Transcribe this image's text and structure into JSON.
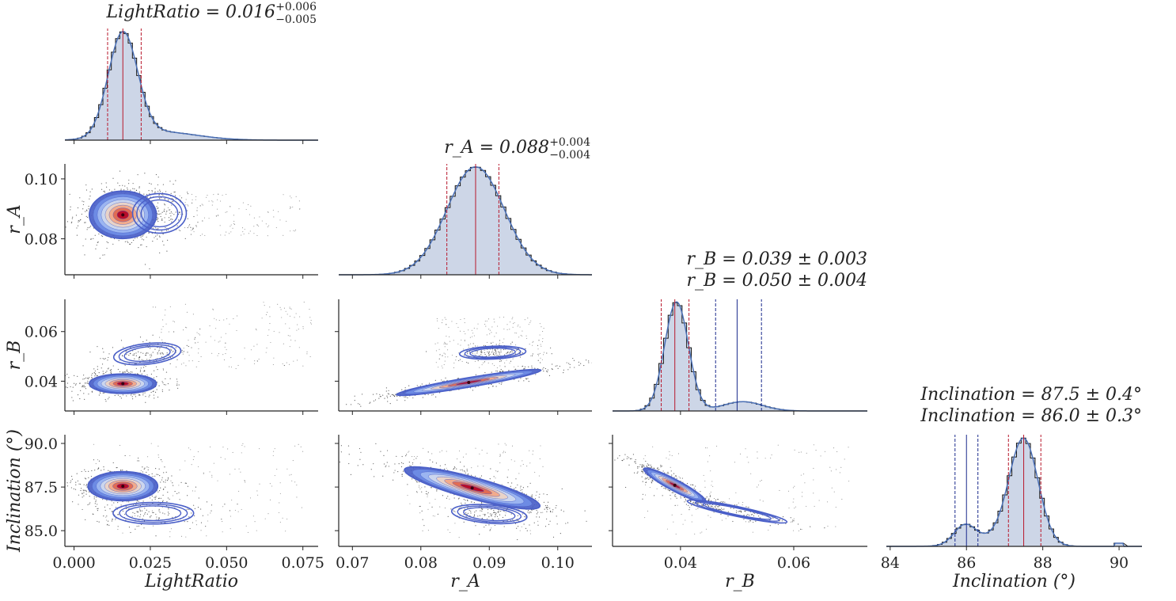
{
  "chart_data": {
    "type": "scatter",
    "variant": "corner-plot",
    "colors": {
      "hist_fill": "#cdd6e7",
      "hist_step": "#111111",
      "kde_line": "#4a6fb5",
      "median_red": "#b8182c",
      "median_blue": "#1a2a8c",
      "contour": "#4a5fc8",
      "points": "#333333"
    },
    "parameters": [
      {
        "key": "light_ratio",
        "label": "LightRatio",
        "lim": [
          -0.003,
          0.08
        ],
        "ticks": [
          "0.000",
          "0.025",
          "0.050",
          "0.075"
        ],
        "tick_values": [
          0,
          0.025,
          0.05,
          0.075
        ]
      },
      {
        "key": "r_a",
        "label": "r_A",
        "lim": [
          0.068,
          0.105
        ],
        "ticks": [
          "0.07",
          "0.08",
          "0.09",
          "0.10"
        ],
        "tick_values": [
          0.07,
          0.08,
          0.09,
          0.1
        ]
      },
      {
        "key": "r_b",
        "label": "r_B",
        "lim": [
          0.028,
          0.073
        ],
        "ticks": [
          "0.04",
          "0.06"
        ],
        "tick_values": [
          0.04,
          0.06
        ]
      },
      {
        "key": "inclination",
        "label": "Inclination (°)",
        "lim": [
          83.9,
          90.6
        ],
        "ticks": [
          "84",
          "86",
          "88",
          "90"
        ],
        "tick_values": [
          84,
          86,
          88,
          90
        ]
      }
    ],
    "row_axes": [
      {
        "param": "r_a",
        "label": "r_A",
        "lim": [
          0.068,
          0.105
        ],
        "ticks": [
          "0.08",
          "0.10"
        ],
        "tick_values": [
          0.08,
          0.1
        ]
      },
      {
        "param": "r_b",
        "label": "r_B",
        "lim": [
          0.028,
          0.073
        ],
        "ticks": [
          "0.04",
          "0.06"
        ],
        "tick_values": [
          0.04,
          0.06
        ]
      },
      {
        "param": "inclination",
        "label": "Inclination (°)",
        "lim": [
          84.1,
          90.5
        ],
        "ticks": [
          "85.0",
          "87.5",
          "90.0"
        ],
        "tick_values": [
          85.0,
          87.5,
          90.0
        ]
      }
    ],
    "marginals": [
      {
        "param": "light_ratio",
        "titles": [
          "LightRatio = 0.016 +0.006 −0.005"
        ],
        "title_parts": [
          {
            "main": "LightRatio = 0.016",
            "sup": "+0.006",
            "sub": "−0.005"
          }
        ],
        "medians": [
          {
            "value": 0.016,
            "lo": 0.011,
            "hi": 0.022,
            "color": "median_red"
          }
        ],
        "components": [
          {
            "mu": 0.016,
            "sigma": 0.0048,
            "weight": 1.0
          },
          {
            "mu": 0.028,
            "sigma": 0.012,
            "weight": 0.08
          }
        ],
        "bins": 60
      },
      {
        "param": "r_a",
        "titles": [
          "r_A = 0.088 +0.004 −0.004"
        ],
        "title_parts": [
          {
            "main": "r_A = 0.088",
            "sup": "+0.004",
            "sub": "−0.004"
          }
        ],
        "medians": [
          {
            "value": 0.088,
            "lo": 0.0838,
            "hi": 0.0914,
            "color": "median_red"
          }
        ],
        "components": [
          {
            "mu": 0.088,
            "sigma": 0.0042,
            "weight": 1.0
          }
        ],
        "bins": 50
      },
      {
        "param": "r_b",
        "titles": [
          "r_B = 0.039 ± 0.003",
          "r_B = 0.050 ± 0.004"
        ],
        "medians": [
          {
            "value": 0.039,
            "lo": 0.0366,
            "hi": 0.0415,
            "color": "median_red"
          },
          {
            "value": 0.05,
            "lo": 0.0462,
            "hi": 0.0543,
            "color": "median_blue"
          }
        ],
        "components": [
          {
            "mu": 0.0393,
            "sigma": 0.0021,
            "weight": 1.0
          },
          {
            "mu": 0.051,
            "sigma": 0.0035,
            "weight": 0.085
          }
        ],
        "bins": 55
      },
      {
        "param": "inclination",
        "titles": [
          "Inclination = 87.5 ± 0.4°",
          "Inclination = 86.0 ± 0.3°"
        ],
        "medians": [
          {
            "value": 87.5,
            "lo": 87.1,
            "hi": 87.95,
            "color": "median_red"
          },
          {
            "value": 86.0,
            "lo": 85.7,
            "hi": 86.3,
            "color": "median_blue"
          }
        ],
        "components": [
          {
            "mu": 87.5,
            "sigma": 0.38,
            "weight": 1.0
          },
          {
            "mu": 85.95,
            "sigma": 0.28,
            "weight": 0.17
          },
          {
            "mu": 86.6,
            "sigma": 0.6,
            "weight": 0.07
          }
        ],
        "spike": {
          "at": 90.0,
          "height": 0.03
        },
        "bins": 55
      }
    ],
    "joint_panels": [
      {
        "row": 1,
        "col": 0,
        "blobs": [
          {
            "mx": 0.016,
            "my": 0.088,
            "sx": 0.005,
            "sy": 0.0036,
            "rho": 0.0,
            "w": 1.0
          },
          {
            "mx": 0.028,
            "my": 0.0885,
            "sx": 0.004,
            "sy": 0.003,
            "rho": 0.0,
            "w": 0.25
          }
        ],
        "scatter_tail": {
          "x": [
            0.03,
            0.075
          ],
          "y": [
            0.081,
            0.095
          ],
          "n": 120
        }
      },
      {
        "row": 2,
        "col": 0,
        "blobs": [
          {
            "mx": 0.016,
            "my": 0.039,
            "sx": 0.005,
            "sy": 0.0018,
            "rho": 0.0,
            "w": 1.0
          },
          {
            "mx": 0.024,
            "my": 0.051,
            "sx": 0.005,
            "sy": 0.002,
            "rho": 0.3,
            "w": 0.22
          }
        ],
        "scatter_tail": {
          "x": [
            0.025,
            0.078
          ],
          "y": [
            0.045,
            0.072
          ],
          "n": 160
        }
      },
      {
        "row": 3,
        "col": 0,
        "blobs": [
          {
            "mx": 0.016,
            "my": 87.55,
            "sx": 0.0052,
            "sy": 0.38,
            "rho": 0.0,
            "w": 1.0
          },
          {
            "mx": 0.026,
            "my": 86.0,
            "sx": 0.006,
            "sy": 0.28,
            "rho": 0.0,
            "w": 0.2
          }
        ],
        "scatter_tail": {
          "x": [
            0.005,
            0.075
          ],
          "y": [
            84.6,
            90.0
          ],
          "n": 140
        }
      },
      {
        "row": 2,
        "col": 1,
        "blobs": [
          {
            "mx": 0.087,
            "my": 0.0395,
            "sx": 0.0048,
            "sy": 0.0024,
            "rho": 0.93,
            "w": 1.0
          },
          {
            "mx": 0.0905,
            "my": 0.0515,
            "sx": 0.0022,
            "sy": 0.0012,
            "rho": 0.2,
            "w": 0.22
          }
        ],
        "scatter_tail": {
          "x": [
            0.082,
            0.098
          ],
          "y": [
            0.045,
            0.066
          ],
          "n": 180
        }
      },
      {
        "row": 3,
        "col": 1,
        "blobs": [
          {
            "mx": 0.0875,
            "my": 87.45,
            "sx": 0.0045,
            "sy": 0.55,
            "rho": -0.85,
            "w": 1.0
          },
          {
            "mx": 0.09,
            "my": 85.95,
            "sx": 0.0025,
            "sy": 0.25,
            "rho": -0.3,
            "w": 0.2
          }
        ],
        "scatter_tail": {
          "x": [
            0.078,
            0.098
          ],
          "y": [
            84.6,
            90.0
          ],
          "n": 160
        }
      },
      {
        "row": 3,
        "col": 2,
        "blobs": [
          {
            "mx": 0.039,
            "my": 87.6,
            "sx": 0.0025,
            "sy": 0.45,
            "rho": -0.93,
            "w": 1.0
          },
          {
            "mx": 0.05,
            "my": 86.1,
            "sx": 0.004,
            "sy": 0.3,
            "rho": -0.9,
            "w": 0.2
          }
        ],
        "scatter_tail": {
          "x": [
            0.033,
            0.07
          ],
          "y": [
            84.8,
            90.0
          ],
          "n": 150
        }
      }
    ]
  }
}
